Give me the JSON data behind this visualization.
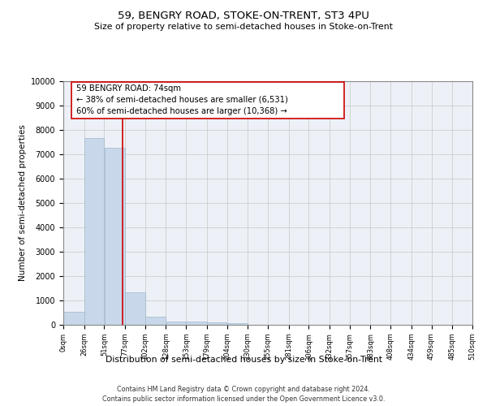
{
  "title": "59, BENGRY ROAD, STOKE-ON-TRENT, ST3 4PU",
  "subtitle": "Size of property relative to semi-detached houses in Stoke-on-Trent",
  "xlabel": "Distribution of semi-detached houses by size in Stoke-on-Trent",
  "ylabel": "Number of semi-detached properties",
  "footer_line1": "Contains HM Land Registry data © Crown copyright and database right 2024.",
  "footer_line2": "Contains public sector information licensed under the Open Government Licence v3.0.",
  "bar_edges": [
    0,
    26,
    51,
    77,
    102,
    128,
    153,
    179,
    204,
    230,
    255,
    281,
    306,
    332,
    357,
    383,
    408,
    434,
    459,
    485,
    510
  ],
  "bar_heights": [
    550,
    7650,
    7250,
    1350,
    320,
    150,
    120,
    100,
    70,
    0,
    0,
    0,
    0,
    0,
    0,
    0,
    0,
    0,
    0,
    0
  ],
  "bar_color": "#c8d8ea",
  "bar_edge_color": "#a0b8cc",
  "property_value": 74,
  "property_line_color": "#cc0000",
  "annotation_text_line1": "59 BENGRY ROAD: 74sqm",
  "annotation_text_line2": "← 38% of semi-detached houses are smaller (6,531)",
  "annotation_text_line3": "60% of semi-detached houses are larger (10,368) →",
  "annotation_box_color": "#ffffff",
  "annotation_box_edge_color": "#cc0000",
  "ylim": [
    0,
    10000
  ],
  "xlim": [
    0,
    510
  ],
  "tick_labels": [
    "0sqm",
    "26sqm",
    "51sqm",
    "77sqm",
    "102sqm",
    "128sqm",
    "153sqm",
    "179sqm",
    "204sqm",
    "230sqm",
    "255sqm",
    "281sqm",
    "306sqm",
    "332sqm",
    "357sqm",
    "383sqm",
    "408sqm",
    "434sqm",
    "459sqm",
    "485sqm",
    "510sqm"
  ],
  "tick_positions": [
    0,
    26,
    51,
    77,
    102,
    128,
    153,
    179,
    204,
    230,
    255,
    281,
    306,
    332,
    357,
    383,
    408,
    434,
    459,
    485,
    510
  ],
  "ytick_labels": [
    "0",
    "1000",
    "2000",
    "3000",
    "4000",
    "5000",
    "6000",
    "7000",
    "8000",
    "9000",
    "10000"
  ],
  "ytick_positions": [
    0,
    1000,
    2000,
    3000,
    4000,
    5000,
    6000,
    7000,
    8000,
    9000,
    10000
  ],
  "grid_color": "#cccccc",
  "background_color": "#edf1f7"
}
